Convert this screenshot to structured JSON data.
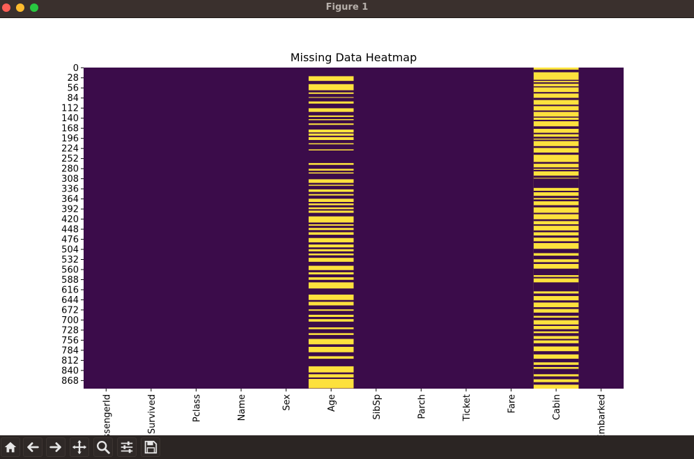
{
  "window": {
    "title": "Figure 1"
  },
  "toolbar": {
    "buttons": [
      {
        "name": "home-button",
        "icon": "home-icon"
      },
      {
        "name": "back-button",
        "icon": "arrow-left-icon"
      },
      {
        "name": "forward-button",
        "icon": "arrow-right-icon"
      },
      {
        "name": "pan-button",
        "icon": "move-icon"
      },
      {
        "name": "zoom-button",
        "icon": "search-icon"
      },
      {
        "name": "configure-subplots-button",
        "icon": "sliders-icon"
      },
      {
        "name": "save-button",
        "icon": "save-icon"
      }
    ]
  },
  "chart_data": {
    "type": "heatmap",
    "title": "Missing Data Heatmap",
    "columns": [
      "PassengerId",
      "Survived",
      "Pclass",
      "Name",
      "Sex",
      "Age",
      "SibSp",
      "Parch",
      "Ticket",
      "Fare",
      "Cabin",
      "Embarked"
    ],
    "y_ticks": [
      0,
      28,
      56,
      84,
      112,
      140,
      168,
      196,
      224,
      252,
      280,
      308,
      336,
      364,
      392,
      420,
      448,
      476,
      504,
      532,
      560,
      588,
      616,
      644,
      672,
      700,
      728,
      756,
      784,
      812,
      840,
      868
    ],
    "n_rows": 891,
    "colors": {
      "present": "#3b0c4a",
      "missing": "#fde13d"
    },
    "missing_rows": {
      "Age": [
        24,
        25,
        26,
        27,
        28,
        29,
        30,
        31,
        32,
        33,
        34,
        35,
        36,
        46,
        47,
        48,
        49,
        50,
        51,
        52,
        53,
        54,
        55,
        56,
        57,
        58,
        59,
        60,
        61,
        62,
        69,
        70,
        71,
        72,
        82,
        83,
        94,
        95,
        96,
        97,
        98,
        99,
        113,
        114,
        115,
        116,
        117,
        118,
        119,
        120,
        121,
        122,
        133,
        134,
        135,
        136,
        143,
        144,
        145,
        155,
        156,
        157,
        158,
        172,
        173,
        174,
        175,
        176,
        177,
        178,
        179,
        183,
        184,
        185,
        186,
        187,
        188,
        193,
        194,
        195,
        196,
        197,
        198,
        199,
        200,
        210,
        211,
        212,
        227,
        228,
        229,
        265,
        266,
        267,
        268,
        269,
        281,
        282,
        283,
        284,
        285,
        291,
        292,
        293,
        310,
        311,
        312,
        313,
        314,
        315,
        316,
        317,
        318,
        319,
        325,
        326,
        327,
        338,
        339,
        340,
        341,
        342,
        343,
        344,
        351,
        352,
        353,
        354,
        364,
        365,
        366,
        367,
        368,
        369,
        370,
        371,
        372,
        377,
        378,
        379,
        380,
        381,
        388,
        389,
        390,
        391,
        392,
        397,
        398,
        399,
        400,
        401,
        402,
        413,
        414,
        415,
        416,
        417,
        418,
        419,
        420,
        421,
        422,
        423,
        424,
        425,
        426,
        427,
        428,
        429,
        435,
        436,
        437,
        438,
        445,
        446,
        447,
        448,
        449,
        450,
        457,
        458,
        459,
        460,
        461,
        462,
        463,
        473,
        474,
        475,
        476,
        477,
        478,
        479,
        480,
        481,
        482,
        483,
        484,
        491,
        492,
        493,
        494,
        495,
        496,
        497,
        498,
        504,
        505,
        506,
        507,
        508,
        509,
        516,
        517,
        518,
        519,
        520,
        528,
        529,
        530,
        531,
        532,
        533,
        534,
        535,
        536,
        537,
        538,
        550,
        551,
        552,
        553,
        554,
        555,
        556,
        557,
        558,
        559,
        560,
        561,
        568,
        569,
        570,
        571,
        572,
        573,
        582,
        583,
        584,
        585,
        586,
        587,
        588,
        596,
        597,
        598,
        599,
        600,
        601,
        602,
        603,
        604,
        605,
        606,
        607,
        608,
        609,
        610,
        611,
        612,
        630,
        631,
        632,
        633,
        634,
        635,
        636,
        637,
        638,
        639,
        640,
        641,
        642,
        643,
        644,
        650,
        651,
        652,
        653,
        654,
        655,
        656,
        657,
        658,
        659,
        671,
        672,
        673,
        674,
        686,
        687,
        688,
        689,
        690,
        691,
        698,
        699,
        700,
        701,
        702,
        703,
        704,
        721,
        722,
        723,
        724,
        725,
        737,
        738,
        739,
        740,
        741,
        753,
        754,
        755,
        756,
        757,
        758,
        759,
        760,
        761,
        762,
        763,
        764,
        765,
        766,
        767,
        775,
        776,
        777,
        778,
        779,
        780,
        781,
        782,
        783,
        784,
        785,
        786,
        787,
        788,
        789,
        801,
        802,
        803,
        804,
        805,
        806,
        807,
        829,
        830,
        831,
        832,
        833,
        834,
        835,
        836,
        837,
        838,
        839,
        840,
        841,
        842,
        843,
        844,
        845,
        851,
        852,
        853,
        854,
        855,
        856,
        857,
        858,
        859,
        864,
        865,
        866,
        867,
        868,
        869,
        870,
        871,
        872,
        873,
        874,
        875,
        876,
        877,
        878,
        879,
        880,
        881,
        882,
        883,
        884,
        885,
        886,
        887,
        888,
        889
      ],
      "Cabin_present": [
        6,
        7,
        8,
        9,
        10,
        11,
        12,
        34,
        35,
        36,
        41,
        42,
        43,
        44,
        52,
        53,
        54,
        68,
        69,
        70,
        71,
        84,
        85,
        86,
        87,
        88,
        89,
        103,
        104,
        105,
        106,
        119,
        120,
        121,
        122,
        136,
        137,
        138,
        145,
        146,
        147,
        148,
        163,
        164,
        165,
        166,
        167,
        168,
        169,
        181,
        182,
        183,
        184,
        192,
        193,
        194,
        195,
        196,
        200,
        201,
        202,
        203,
        218,
        219,
        220,
        221,
        222,
        236,
        237,
        238,
        239,
        240,
        241,
        262,
        263,
        264,
        265,
        266,
        277,
        278,
        279,
        280,
        284,
        285,
        286,
        287,
        300,
        301,
        302,
        303,
        304,
        305,
        308,
        309,
        310,
        311,
        312,
        313,
        314,
        315,
        316,
        317,
        318,
        319,
        320,
        321,
        322,
        323,
        324,
        325,
        326,
        327,
        328,
        329,
        330,
        331,
        332,
        333,
        342,
        343,
        344,
        345,
        356,
        357,
        358,
        359,
        360,
        361,
        366,
        367,
        368,
        369,
        370,
        382,
        383,
        384,
        385,
        386,
        387,
        403,
        404,
        405,
        406,
        421,
        422,
        423,
        424,
        425,
        435,
        436,
        437,
        438,
        452,
        453,
        454,
        455,
        456,
        466,
        467,
        468,
        469,
        470,
        471,
        482,
        483,
        484,
        485,
        486,
        503,
        504,
        505,
        506,
        507,
        508,
        509,
        510,
        511,
        512,
        513,
        514,
        522,
        523,
        524,
        525,
        526,
        527,
        528,
        529,
        530,
        531,
        540,
        541,
        542,
        543,
        544,
        558,
        559,
        560,
        561,
        562,
        563,
        564,
        565,
        566,
        567,
        568,
        569,
        570,
        571,
        572,
        573,
        574,
        575,
        581,
        582,
        583,
        584,
        596,
        597,
        598,
        599,
        600,
        601,
        602,
        603,
        604,
        605,
        606,
        607,
        608,
        609,
        610,
        611,
        612,
        613,
        614,
        615,
        616,
        617,
        618,
        619,
        620,
        627,
        628,
        629,
        630,
        631,
        632,
        633,
        646,
        647,
        648,
        649,
        650,
        651,
        665,
        666,
        667,
        668,
        669,
        680,
        681,
        682,
        683,
        684,
        685,
        686,
        687,
        688,
        694,
        695,
        696,
        697,
        698,
        699,
        700,
        713,
        714,
        715,
        716,
        726,
        727,
        728,
        729,
        730,
        731,
        737,
        738,
        739,
        740,
        741,
        742,
        743,
        744,
        753,
        754,
        755,
        756,
        765,
        766,
        767,
        768,
        769,
        770,
        771,
        772,
        773,
        787,
        788,
        789,
        790,
        791,
        792,
        793,
        794,
        795,
        808,
        809,
        810,
        811,
        812,
        813,
        814,
        815,
        816,
        817,
        825,
        826,
        827,
        828,
        829,
        830,
        836,
        837,
        838,
        839,
        840,
        841,
        842,
        843,
        844,
        845,
        846,
        847,
        848,
        849,
        850,
        857,
        858,
        859,
        860,
        861,
        862,
        863,
        864,
        873,
        874,
        875,
        876,
        877,
        878,
        879
      ]
    }
  }
}
